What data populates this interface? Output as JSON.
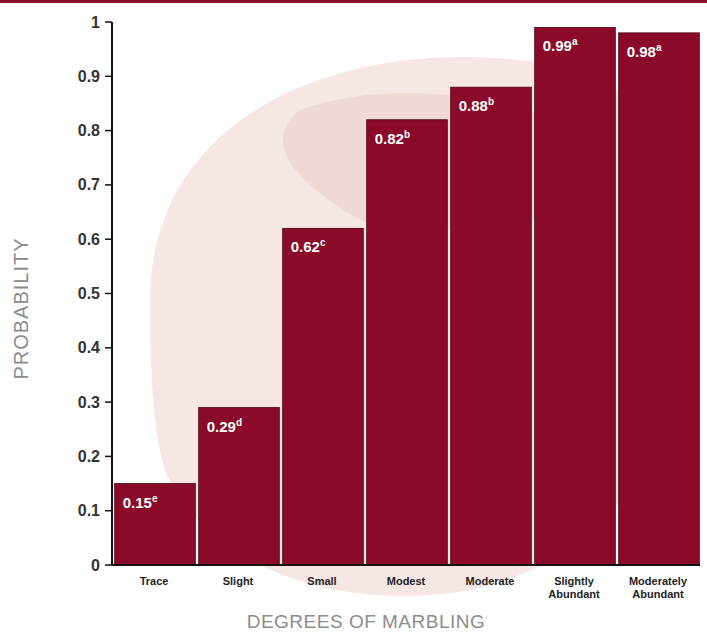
{
  "chart_data": {
    "type": "bar",
    "categories": [
      "Trace",
      "Slight",
      "Small",
      "Modest",
      "Moderate",
      "Slightly Abundant",
      "Moderately Abundant"
    ],
    "values": [
      0.15,
      0.29,
      0.62,
      0.82,
      0.88,
      0.99,
      0.98
    ],
    "significance_letters": [
      "e",
      "d",
      "c",
      "b",
      "b",
      "a",
      "a"
    ],
    "x_label": "DEGREES OF MARBLING",
    "y_label": "PROBABILITY",
    "color": "#8b0a2a",
    "ylim": [
      0,
      1
    ],
    "yticks": [
      0,
      0.1,
      0.2,
      0.3,
      0.4,
      0.5,
      0.6,
      0.7,
      0.8,
      0.9,
      1
    ],
    "grid": false,
    "data_labels": true
  }
}
